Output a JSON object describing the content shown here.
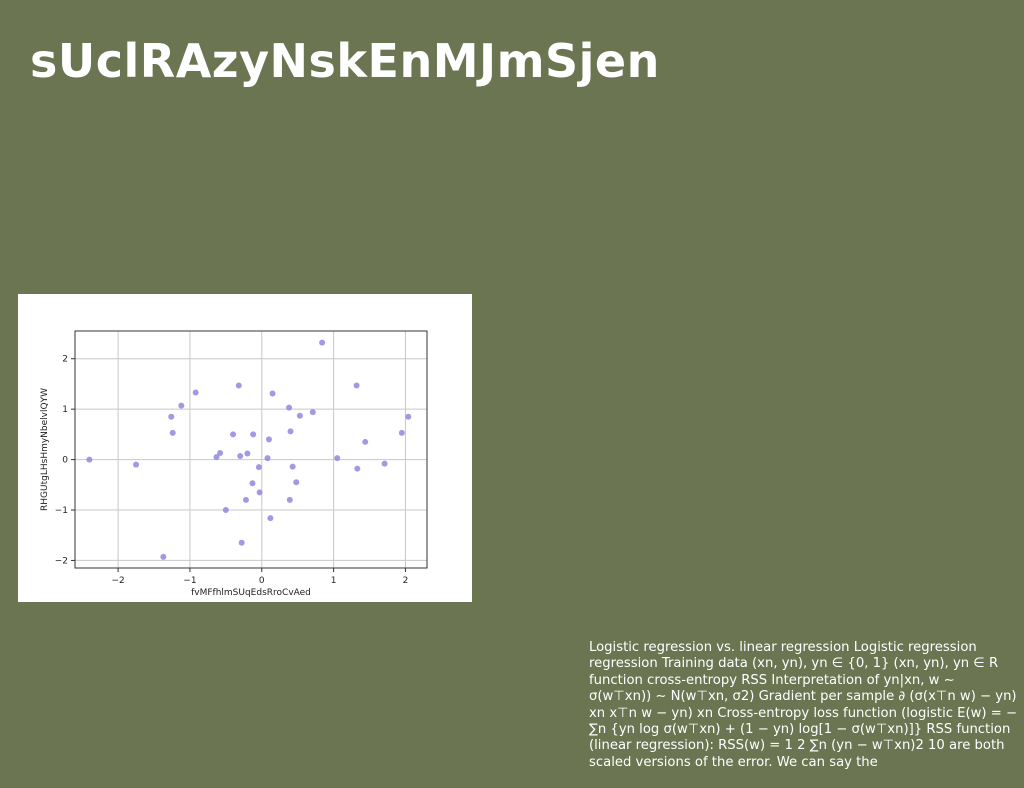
{
  "slide": {
    "title": "sUclRAzyNskEnMJmSjen",
    "body": "Logistic regression vs. linear regression Logistic regression regression Training data (xn, yn), yn ∈ {0, 1} (xn, yn), yn ∈ R function cross-entropy RSS Interpretation of yn|xn, w ∼ σ(w⊤xn)) ∼ N(w⊤xn, σ2) Gradient per sample ∂ (σ(x⊤n w) − yn) xn x⊤n w − yn) xn Cross-entropy loss function (logistic E(w) = − ∑n {yn log σ(w⊤xn) + (1 − yn) log[1 − σ(w⊤xn)]} RSS function (linear regression): RSS(w) = 1 2 ∑n (yn − w⊤xn)2 10 are both scaled versions of the error. We can say the"
  },
  "colors": {
    "background": "#6b7552",
    "point": "#8f88e0"
  },
  "chart_data": {
    "type": "scatter",
    "xlabel": "fvMFfhlmSUqEdsRroCvAed",
    "ylabel": "RHGUtgLHsHmyNbelvlQYW",
    "xlim": [
      -2.6,
      2.3
    ],
    "ylim": [
      -2.15,
      2.55
    ],
    "xticks": [
      -2,
      -1,
      0,
      1,
      2
    ],
    "yticks": [
      -2,
      -1,
      0,
      1,
      2
    ],
    "xtick_labels": [
      "−2",
      "−1",
      "0",
      "1",
      "2"
    ],
    "ytick_labels": [
      "−2",
      "−1",
      "0",
      "1",
      "2"
    ],
    "grid": true,
    "x": [
      -2.4,
      -1.75,
      -1.37,
      -1.26,
      -1.24,
      -1.12,
      -0.92,
      -0.63,
      -0.58,
      -0.5,
      -0.4,
      -0.32,
      -0.3,
      -0.28,
      -0.22,
      -0.2,
      -0.13,
      -0.12,
      -0.04,
      -0.03,
      0.08,
      0.1,
      0.12,
      0.15,
      0.38,
      0.39,
      0.4,
      0.43,
      0.48,
      0.53,
      0.71,
      0.84,
      1.05,
      1.32,
      1.33,
      1.44,
      1.71,
      1.95,
      2.04
    ],
    "y": [
      0.0,
      -0.1,
      -1.93,
      0.85,
      0.53,
      1.07,
      1.33,
      0.05,
      0.13,
      -1.0,
      0.5,
      1.47,
      0.07,
      -1.65,
      -0.8,
      0.12,
      -0.47,
      0.5,
      -0.15,
      -0.65,
      0.03,
      0.4,
      -1.16,
      1.31,
      1.03,
      -0.8,
      0.56,
      -0.14,
      -0.45,
      0.87,
      0.94,
      2.32,
      0.03,
      1.47,
      -0.18,
      0.35,
      -0.08,
      0.53,
      0.85
    ]
  }
}
